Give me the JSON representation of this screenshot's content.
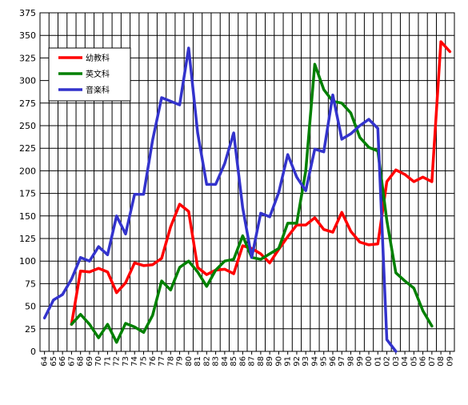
{
  "chart_data": {
    "type": "line",
    "x": [
      "64",
      "65",
      "66",
      "67",
      "68",
      "69",
      "70",
      "71",
      "72",
      "73",
      "74",
      "75",
      "76",
      "77",
      "78",
      "79",
      "80",
      "81",
      "82",
      "83",
      "84",
      "85",
      "86",
      "87",
      "88",
      "89",
      "90",
      "91",
      "92",
      "93",
      "94",
      "95",
      "96",
      "97",
      "98",
      "99",
      "00",
      "01",
      "02",
      "03",
      "04",
      "05",
      "06",
      "07",
      "08",
      "09"
    ],
    "ylim": [
      0,
      375
    ],
    "yticks": [
      0,
      25,
      50,
      75,
      100,
      125,
      150,
      175,
      200,
      225,
      250,
      275,
      300,
      325,
      350,
      375
    ],
    "grid": true,
    "legend_position": "top-left",
    "series": [
      {
        "name": "幼教科",
        "color": "#ff0000",
        "values": [
          null,
          null,
          null,
          30,
          89,
          88,
          92,
          88,
          65,
          76,
          98,
          95,
          96,
          103,
          138,
          163,
          155,
          93,
          85,
          90,
          91,
          86,
          117,
          114,
          108,
          98,
          113,
          127,
          140,
          140,
          148,
          135,
          132,
          154,
          133,
          121,
          118,
          119,
          188,
          201,
          196,
          188,
          193,
          188,
          343,
          332
        ]
      },
      {
        "name": "英文科",
        "color": "#008000",
        "values": [
          null,
          null,
          null,
          30,
          41,
          30,
          15,
          30,
          10,
          31,
          27,
          21,
          40,
          78,
          68,
          93,
          100,
          88,
          72,
          90,
          100,
          102,
          128,
          104,
          102,
          108,
          114,
          142,
          142,
          200,
          318,
          290,
          277,
          275,
          264,
          237,
          226,
          222,
          145,
          87,
          78,
          70,
          45,
          28,
          null,
          null
        ]
      },
      {
        "name": "音楽科",
        "color": "#3333cc",
        "values": [
          37,
          57,
          63,
          80,
          104,
          100,
          116,
          107,
          150,
          130,
          174,
          174,
          234,
          281,
          277,
          273,
          336,
          242,
          185,
          185,
          208,
          242,
          159,
          104,
          153,
          149,
          176,
          218,
          193,
          178,
          224,
          221,
          284,
          235,
          241,
          250,
          257,
          247,
          13,
          0,
          null,
          null,
          null,
          null,
          null,
          null
        ]
      }
    ]
  }
}
